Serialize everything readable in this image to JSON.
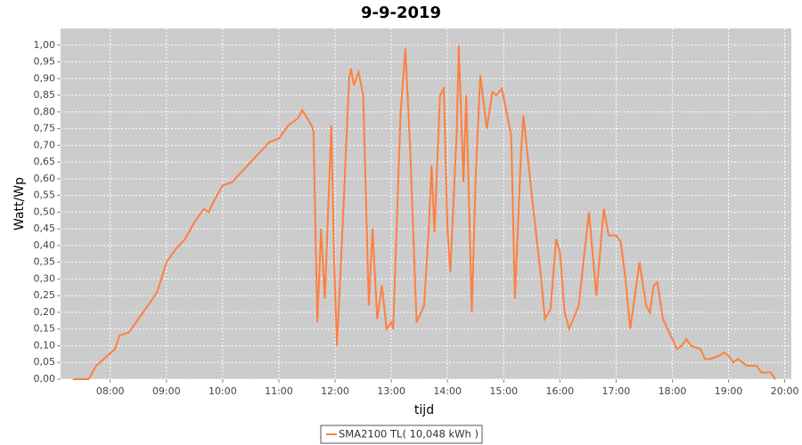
{
  "chart_data": {
    "type": "line",
    "title": "9-9-2019",
    "x_label": "tijd",
    "y_label": "Watt/Wp",
    "x": [
      "07:20",
      "07:37",
      "07:45",
      "07:55",
      "08:05",
      "08:10",
      "08:20",
      "08:30",
      "08:40",
      "08:50",
      "09:00",
      "09:10",
      "09:20",
      "09:30",
      "09:40",
      "09:45",
      "09:50",
      "10:00",
      "10:10",
      "10:20",
      "10:30",
      "10:40",
      "10:50",
      "11:00",
      "11:10",
      "11:20",
      "11:25",
      "11:35",
      "11:37",
      "11:41",
      "11:45",
      "11:49",
      "11:56",
      "11:59",
      "12:02",
      "12:08",
      "12:15",
      "12:17",
      "12:20",
      "12:25",
      "12:30",
      "12:36",
      "12:40",
      "12:45",
      "12:50",
      "12:55",
      "13:00",
      "13:02",
      "13:10",
      "13:15",
      "13:20",
      "13:27",
      "13:35",
      "13:40",
      "13:43",
      "13:46",
      "13:52",
      "13:56",
      "14:00",
      "14:03",
      "14:10",
      "14:12",
      "14:17",
      "14:20",
      "14:26",
      "14:30",
      "14:35",
      "14:42",
      "14:48",
      "14:52",
      "14:58",
      "15:08",
      "15:12",
      "15:18",
      "15:21",
      "15:30",
      "15:40",
      "15:44",
      "15:50",
      "15:56",
      "16:00",
      "16:05",
      "16:10",
      "16:20",
      "16:31",
      "16:39",
      "16:45",
      "16:47",
      "16:52",
      "17:00",
      "17:05",
      "17:10",
      "17:15",
      "17:20",
      "17:25",
      "17:32",
      "17:36",
      "17:40",
      "17:44",
      "17:50",
      "18:00",
      "18:05",
      "18:10",
      "18:15",
      "18:20",
      "18:30",
      "18:35",
      "18:40",
      "18:50",
      "18:55",
      "19:00",
      "19:05",
      "19:10",
      "19:20",
      "19:30",
      "19:35",
      "19:45",
      "19:50"
    ],
    "series": [
      {
        "name": "SMA2100 TL( 10,048 kWh )",
        "color": "#ff7f3f",
        "values": [
          0,
          0,
          0.04,
          0.065,
          0.09,
          0.13,
          0.14,
          0.18,
          0.22,
          0.26,
          0.35,
          0.39,
          0.42,
          0.47,
          0.51,
          0.5,
          0.53,
          0.58,
          0.59,
          0.62,
          0.65,
          0.68,
          0.71,
          0.72,
          0.76,
          0.78,
          0.805,
          0.76,
          0.74,
          0.17,
          0.45,
          0.24,
          0.76,
          0.35,
          0.1,
          0.45,
          0.9,
          0.93,
          0.88,
          0.92,
          0.85,
          0.22,
          0.45,
          0.18,
          0.28,
          0.15,
          0.17,
          0.15,
          0.8,
          0.99,
          0.7,
          0.17,
          0.22,
          0.45,
          0.64,
          0.44,
          0.85,
          0.87,
          0.45,
          0.32,
          0.75,
          1.0,
          0.59,
          0.85,
          0.2,
          0.6,
          0.91,
          0.75,
          0.86,
          0.85,
          0.87,
          0.73,
          0.24,
          0.65,
          0.79,
          0.55,
          0.3,
          0.18,
          0.21,
          0.42,
          0.38,
          0.2,
          0.15,
          0.22,
          0.5,
          0.25,
          0.45,
          0.51,
          0.43,
          0.43,
          0.41,
          0.3,
          0.15,
          0.25,
          0.35,
          0.22,
          0.2,
          0.28,
          0.29,
          0.18,
          0.12,
          0.09,
          0.1,
          0.12,
          0.1,
          0.09,
          0.06,
          0.06,
          0.07,
          0.08,
          0.07,
          0.05,
          0.06,
          0.04,
          0.04,
          0.02,
          0.02,
          0
        ]
      }
    ],
    "xlim": [
      "07:07",
      "20:07"
    ],
    "xticks": [
      "08:00",
      "09:00",
      "10:00",
      "11:00",
      "12:00",
      "13:00",
      "14:00",
      "15:00",
      "16:00",
      "17:00",
      "18:00",
      "19:00",
      "20:00"
    ],
    "ylim": [
      0,
      1.05
    ],
    "yticks": [
      {
        "value": 0,
        "label": "0,00"
      },
      {
        "value": 0.05,
        "label": "0,05"
      },
      {
        "value": 0.1,
        "label": "0,10"
      },
      {
        "value": 0.15,
        "label": "0,15"
      },
      {
        "value": 0.2,
        "label": "0,20"
      },
      {
        "value": 0.25,
        "label": "0,25"
      },
      {
        "value": 0.3,
        "label": "0,30"
      },
      {
        "value": 0.35,
        "label": "0,35"
      },
      {
        "value": 0.4,
        "label": "0,40"
      },
      {
        "value": 0.45,
        "label": "0,45"
      },
      {
        "value": 0.5,
        "label": "0,50"
      },
      {
        "value": 0.55,
        "label": "0,55"
      },
      {
        "value": 0.6,
        "label": "0,60"
      },
      {
        "value": 0.65,
        "label": "0,65"
      },
      {
        "value": 0.7,
        "label": "0,70"
      },
      {
        "value": 0.75,
        "label": "0,75"
      },
      {
        "value": 0.8,
        "label": "0,80"
      },
      {
        "value": 0.85,
        "label": "0,85"
      },
      {
        "value": 0.9,
        "label": "0,90"
      },
      {
        "value": 0.95,
        "label": "0,95"
      },
      {
        "value": 1.0,
        "label": "1,00"
      }
    ],
    "grid": true
  }
}
